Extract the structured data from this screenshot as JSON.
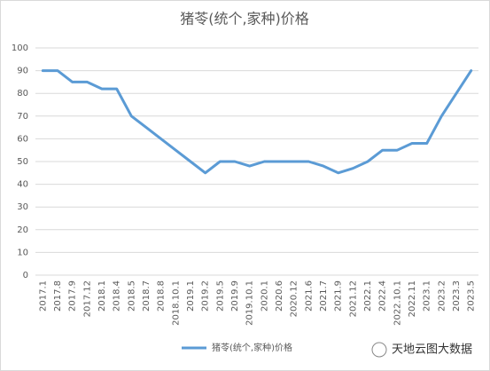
{
  "chart_data": {
    "type": "line",
    "title": "猪苓(统个,家种)价格",
    "categories": [
      "2017.1",
      "2017.8",
      "2017.9",
      "2017.12",
      "2018.1",
      "2018.4",
      "2018.5",
      "2018.7",
      "2018.8",
      "2018.10.1",
      "2019.1",
      "2019.2",
      "2019.5",
      "2019.9",
      "2019.10.1",
      "2020.1",
      "2020.6",
      "2020.12",
      "2021.6",
      "2021.7",
      "2021.9",
      "2021.12",
      "2022.1",
      "2022.4",
      "2022.10.1",
      "2022.11",
      "2023.1",
      "2023.2",
      "2023.3",
      "2023.5"
    ],
    "series": [
      {
        "name": "猪苓(统个,家种)价格",
        "color": "#5b9bd5",
        "values": [
          90,
          90,
          85,
          85,
          82,
          82,
          70,
          65,
          60,
          55,
          50,
          45,
          50,
          50,
          48,
          50,
          50,
          50,
          50,
          48,
          45,
          47,
          50,
          55,
          55,
          58,
          58,
          70,
          80,
          90
        ]
      }
    ],
    "ylim": [
      0,
      100
    ],
    "yticks": [
      0,
      10,
      20,
      30,
      40,
      50,
      60,
      70,
      80,
      90,
      100
    ],
    "grid": true,
    "legend": "bottom",
    "watermark": "天地云图大数据"
  }
}
